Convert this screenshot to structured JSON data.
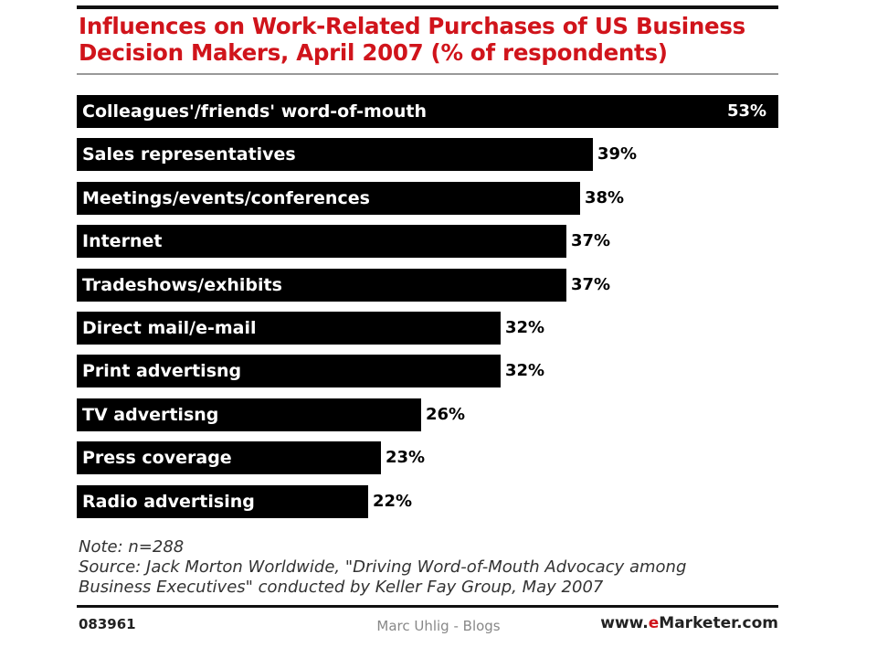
{
  "page": {
    "title_line1": "Influences on Work-Related Purchases of US Business",
    "title_line2": "Decision Makers, April 2007 (% of respondents)",
    "note": "Note: n=288",
    "source_line1": "Source: Jack Morton Worldwide, \"Driving Word-of-Mouth Advocacy among",
    "source_line2": "Business Executives\" conducted by Keller Fay Group, May 2007",
    "chart_id": "083961",
    "watermark": "Marc Uhlig - Blogs",
    "brand_prefix": "www.",
    "brand_e": "e",
    "brand_suffix": "Marketer.com"
  },
  "colors": {
    "title": "#d0141b",
    "bar": "#000000",
    "bar_label": "#ffffff",
    "value_label": "#000000"
  },
  "chart_data": {
    "type": "bar",
    "orientation": "horizontal",
    "categories": [
      "Colleagues'/friends' word-of-mouth",
      "Sales representatives",
      "Meetings/events/conferences",
      "Internet",
      "Tradeshows/exhibits",
      "Direct mail/e-mail",
      "Print advertisng",
      "TV advertisng",
      "Press coverage",
      "Radio advertising"
    ],
    "values": [
      53,
      39,
      38,
      37,
      37,
      32,
      32,
      26,
      23,
      22
    ],
    "value_labels": [
      "53%",
      "39%",
      "38%",
      "37%",
      "37%",
      "32%",
      "32%",
      "26%",
      "23%",
      "22%"
    ],
    "title": "Influences on Work-Related Purchases of US Business Decision Makers, April 2007 (% of respondents)",
    "unit": "%",
    "grid": false,
    "legend": false
  }
}
